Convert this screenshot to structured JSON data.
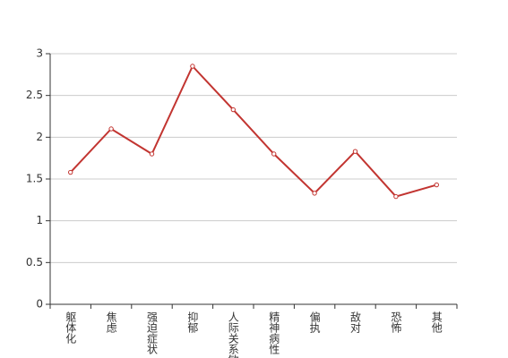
{
  "chart_data": {
    "type": "line",
    "categories": [
      "躯体化",
      "焦虑",
      "强迫症状",
      "抑郁",
      "人际关系敏感",
      "精神病性",
      "偏执",
      "敌对",
      "恐怖",
      "其他"
    ],
    "series": [
      {
        "color": "#c23531",
        "values": [
          1.58,
          2.1,
          1.8,
          2.85,
          2.33,
          1.8,
          1.33,
          1.83,
          1.29,
          1.43
        ]
      }
    ],
    "ylim": [
      0,
      3
    ],
    "yticks": [
      0,
      0.5,
      1,
      1.5,
      2,
      2.5,
      3
    ],
    "grid": true
  }
}
